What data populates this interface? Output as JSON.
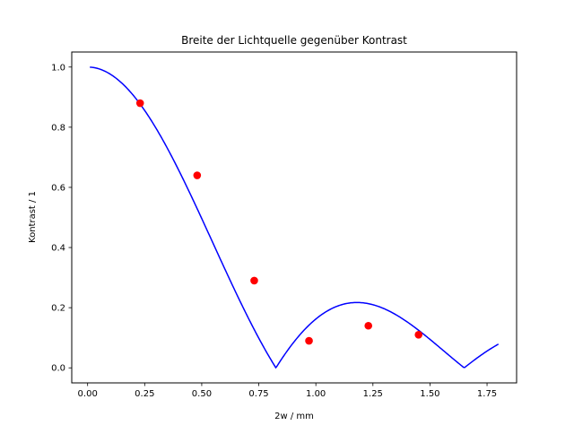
{
  "chart_data": {
    "type": "scatter",
    "title": "Breite der Lichtquelle gegenüber Kontrast",
    "xlabel": "2w / mm",
    "ylabel": "Kontrast / 1",
    "xlim": [
      -0.0695,
      1.8795
    ],
    "ylim": [
      -0.05,
      1.05
    ],
    "xticks": [
      0.0,
      0.25,
      0.5,
      0.75,
      1.0,
      1.25,
      1.5,
      1.75
    ],
    "xtick_labels": [
      "0.00",
      "0.25",
      "0.50",
      "0.75",
      "1.00",
      "1.25",
      "1.50",
      "1.75"
    ],
    "yticks": [
      0.0,
      0.2,
      0.4,
      0.6,
      0.8,
      1.0
    ],
    "ytick_labels": [
      "0.0",
      "0.2",
      "0.4",
      "0.6",
      "0.8",
      "1.0"
    ],
    "grid": false,
    "legend": "none",
    "series": [
      {
        "kind": "measured-points",
        "color": "#ff0000",
        "x": [
          0.23,
          0.48,
          0.73,
          0.97,
          1.23,
          1.45
        ],
        "y": [
          0.88,
          0.64,
          0.29,
          0.09,
          0.14,
          0.11
        ]
      },
      {
        "kind": "model-curve",
        "color": "#0000ff",
        "function": "abs(sin(pi*x/0.825)/(pi*x/0.825))",
        "x_range": [
          0.01,
          1.8
        ]
      }
    ]
  }
}
